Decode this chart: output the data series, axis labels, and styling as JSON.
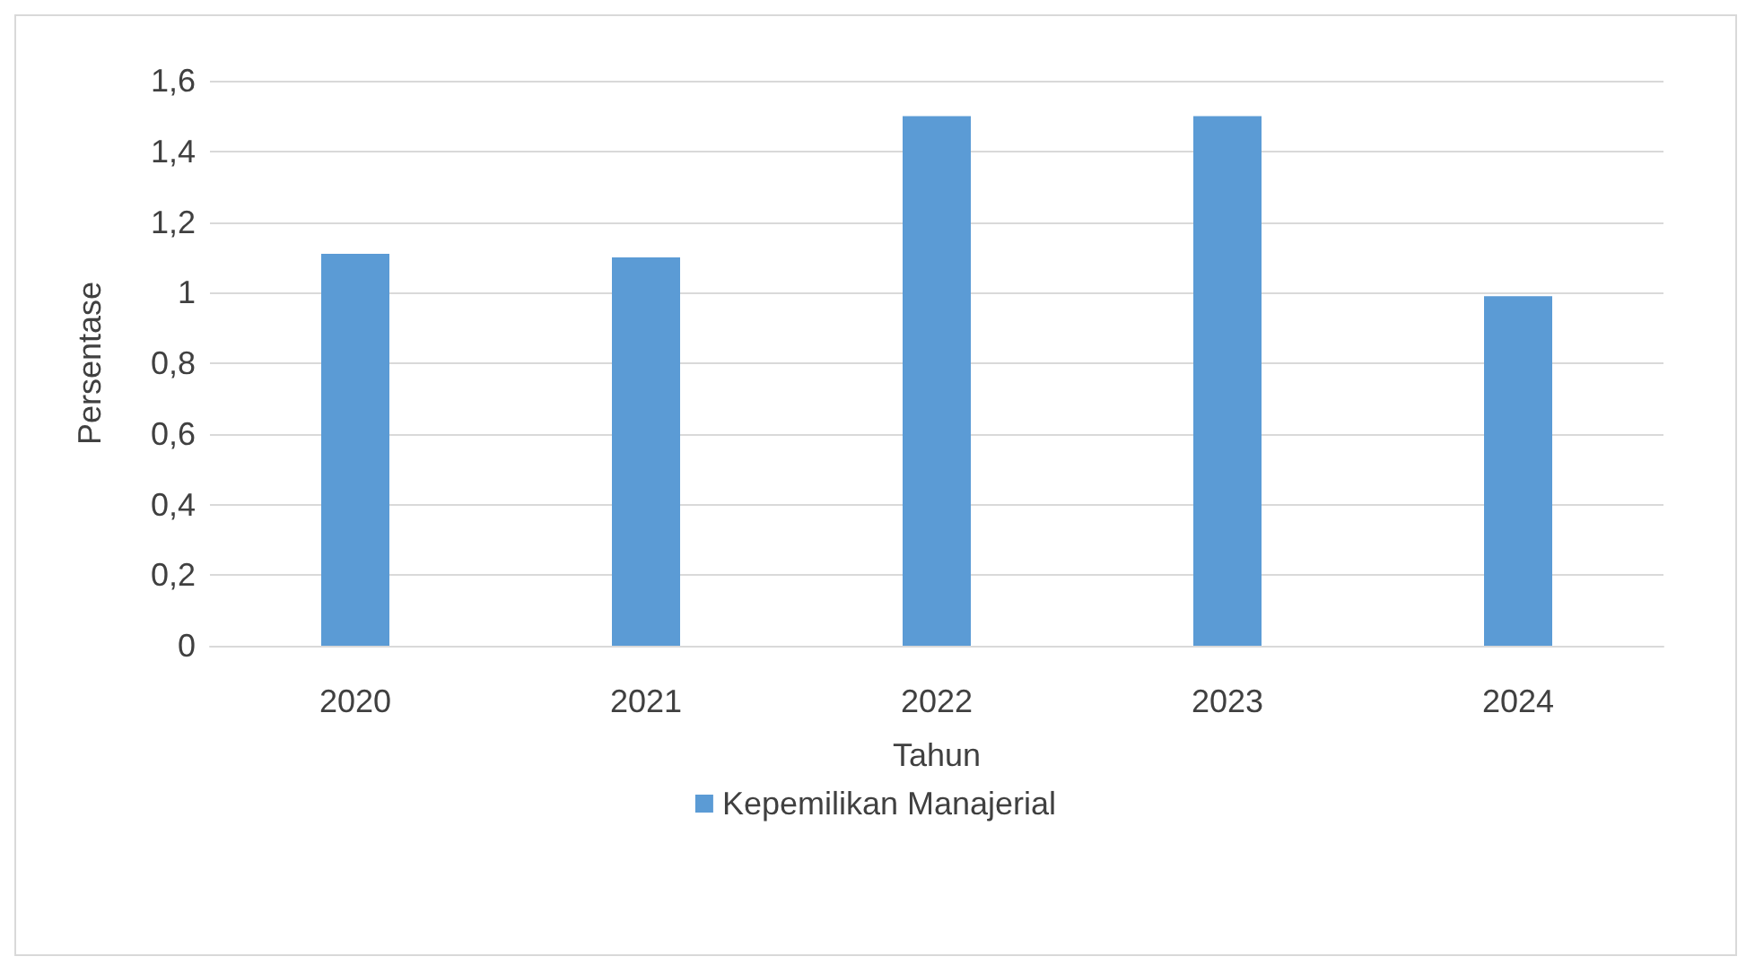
{
  "chart_data": {
    "type": "bar",
    "xlabel": "Tahun",
    "ylabel": "Persentase",
    "categories": [
      "2020",
      "2021",
      "2022",
      "2023",
      "2024"
    ],
    "series": [
      {
        "name": "Kepemilikan Manajerial",
        "color": "#5b9bd5",
        "values": [
          1.11,
          1.1,
          1.5,
          1.5,
          0.99
        ]
      }
    ],
    "ylim": [
      0,
      1.6
    ],
    "yticks": [
      0,
      {
        "value": 0.2,
        "label": "0,2"
      },
      {
        "value": 0.4,
        "label": "0,4"
      },
      {
        "value": 0.6,
        "label": "0,6"
      },
      {
        "value": 0.8,
        "label": "0,8"
      },
      1,
      {
        "value": 1.2,
        "label": "1,2"
      },
      {
        "value": 1.4,
        "label": "1,4"
      },
      {
        "value": 1.6,
        "label": "1,6"
      }
    ],
    "grid": "y",
    "legend": "bottom"
  }
}
